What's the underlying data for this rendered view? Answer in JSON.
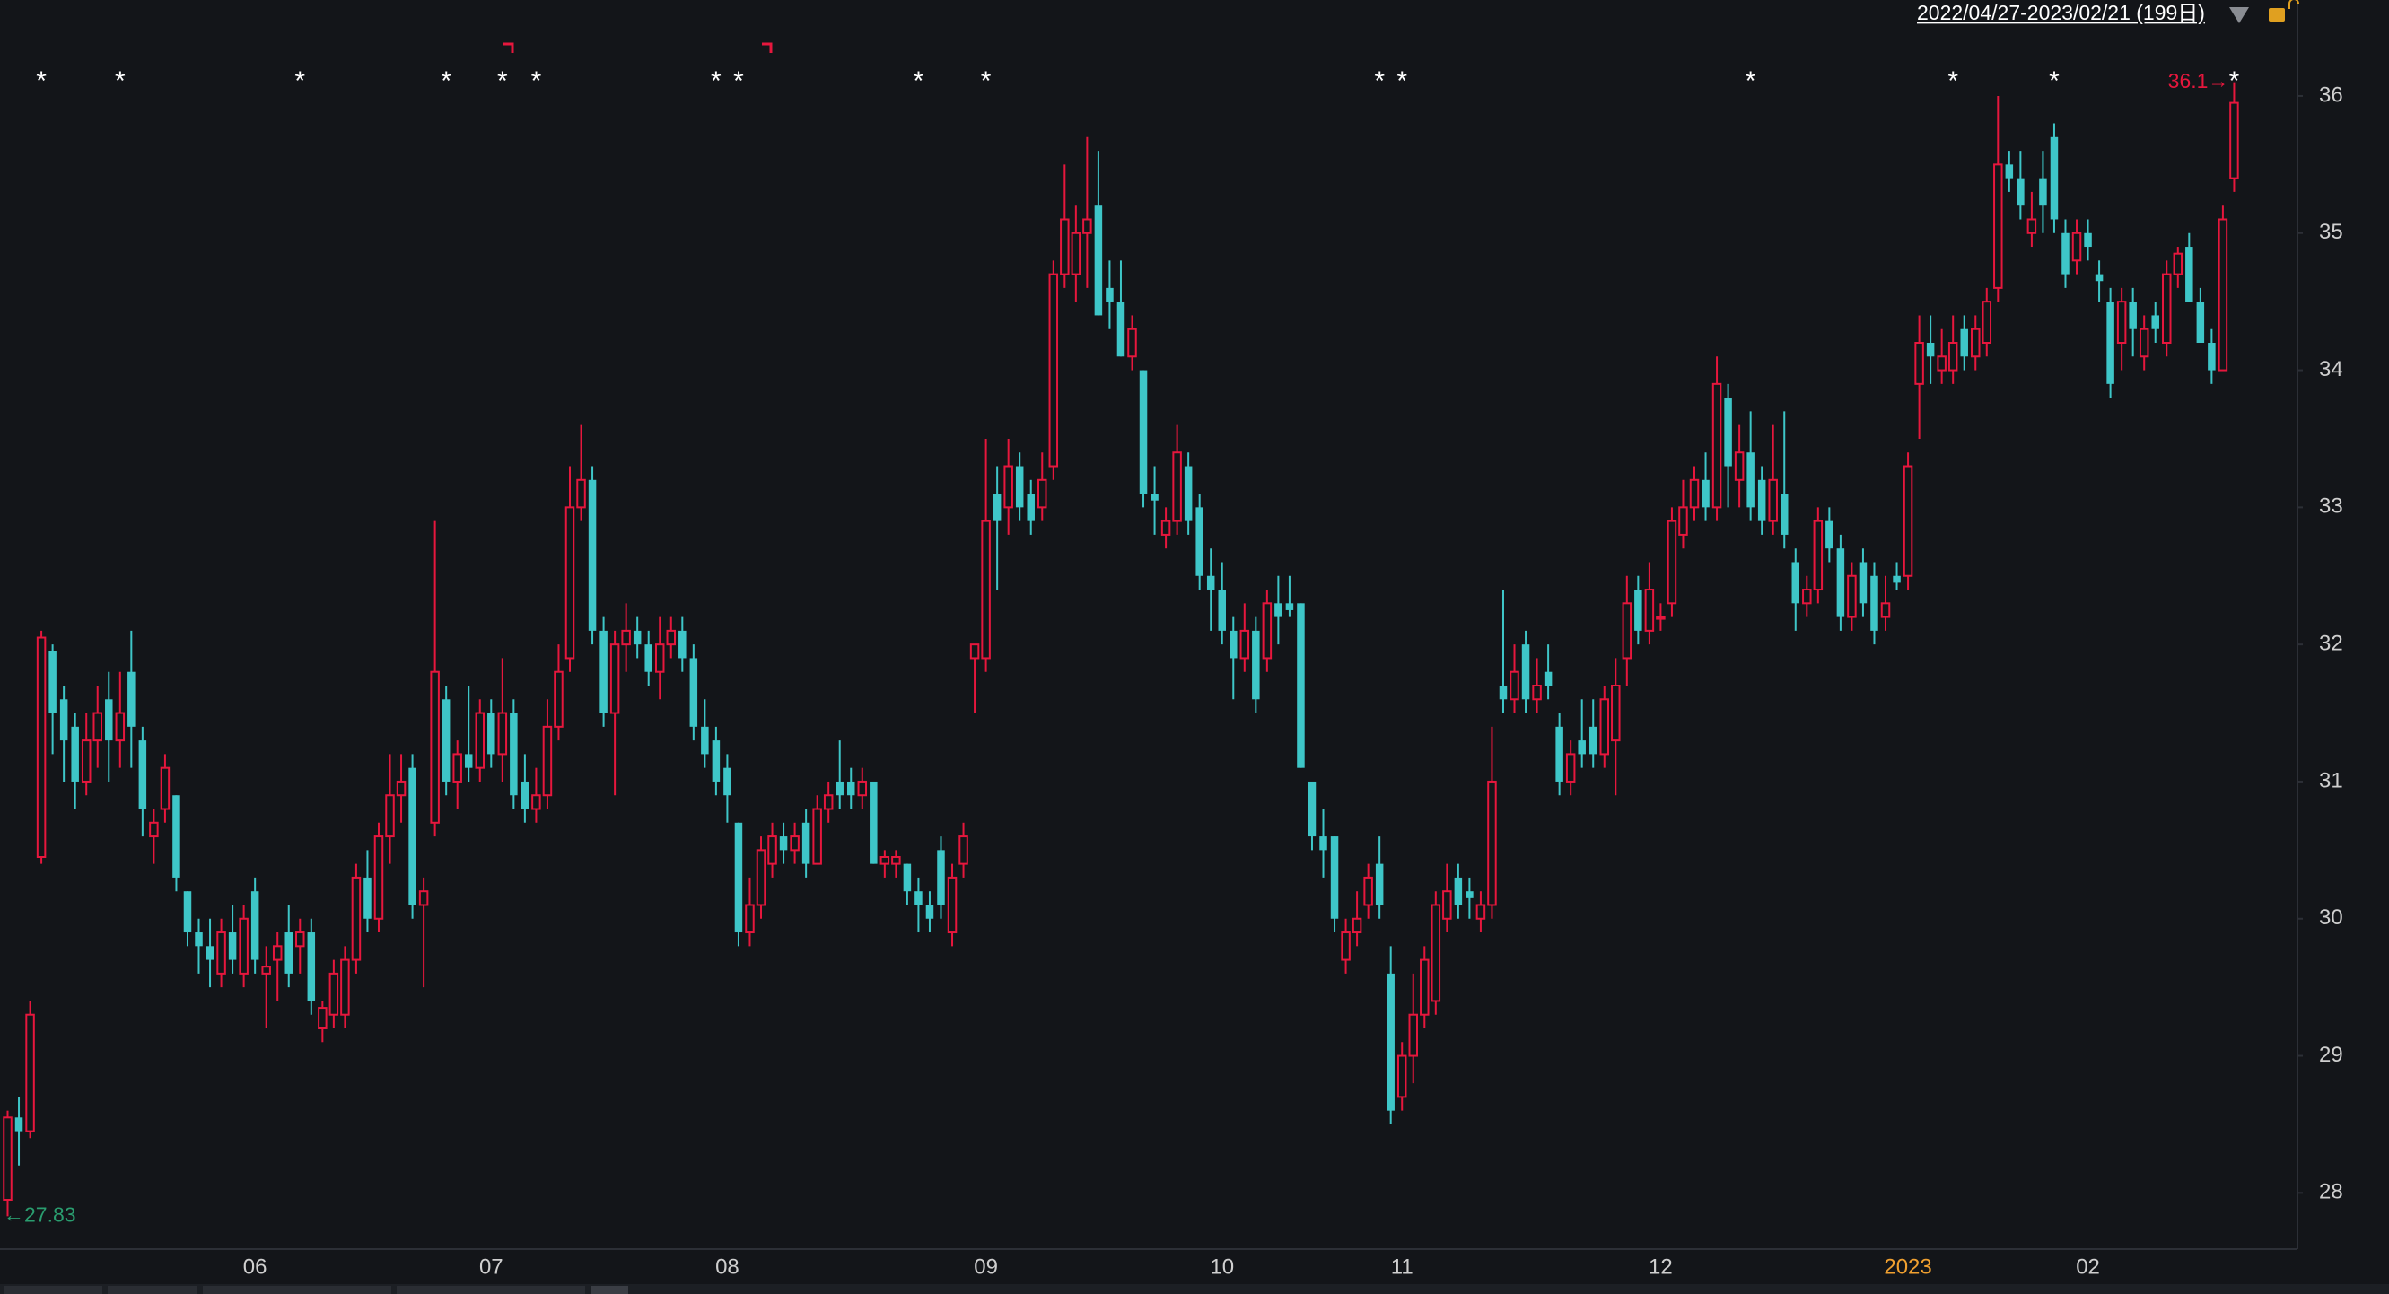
{
  "chart_data": {
    "type": "candlestick",
    "date_range": "2022/04/27-2023/02/21 (199日)",
    "up_color": "#e6173d",
    "down_color": "#3ec6c8",
    "year_label_color": "#f0a030",
    "ylim": [
      27.59,
      36.7
    ],
    "yticks": [
      28,
      29,
      30,
      31,
      32,
      33,
      34,
      35,
      36
    ],
    "categories": [
      null,
      null,
      null,
      null,
      null,
      null,
      null,
      null,
      null,
      null,
      null,
      null,
      null,
      null,
      null,
      null,
      null,
      null,
      null,
      null,
      null,
      null,
      "06",
      null,
      null,
      null,
      null,
      null,
      null,
      null,
      null,
      null,
      null,
      null,
      null,
      null,
      null,
      null,
      null,
      null,
      null,
      null,
      null,
      "07",
      null,
      null,
      null,
      null,
      null,
      null,
      null,
      null,
      null,
      null,
      null,
      null,
      null,
      null,
      null,
      null,
      null,
      null,
      null,
      null,
      "08",
      null,
      null,
      null,
      null,
      null,
      null,
      null,
      null,
      null,
      null,
      null,
      null,
      null,
      null,
      null,
      null,
      null,
      null,
      null,
      null,
      null,
      null,
      "09",
      null,
      null,
      null,
      null,
      null,
      null,
      null,
      null,
      null,
      null,
      null,
      null,
      null,
      null,
      null,
      null,
      null,
      null,
      null,
      null,
      "10",
      null,
      null,
      null,
      null,
      null,
      null,
      null,
      null,
      null,
      null,
      null,
      null,
      null,
      null,
      null,
      "11",
      null,
      null,
      null,
      null,
      null,
      null,
      null,
      null,
      null,
      null,
      null,
      null,
      null,
      null,
      null,
      null,
      null,
      null,
      null,
      null,
      null,
      null,
      "12",
      null,
      null,
      null,
      null,
      null,
      null,
      null,
      null,
      null,
      null,
      null,
      null,
      null,
      null,
      null,
      null,
      null,
      null,
      null,
      null,
      null,
      "2023",
      null,
      null,
      null,
      null,
      null,
      null,
      null,
      null,
      null,
      null,
      null,
      null,
      null,
      null,
      null,
      "02",
      null,
      null,
      null,
      null,
      null,
      null,
      null,
      null,
      null,
      null,
      null,
      null,
      null
    ],
    "markers": [
      null,
      null,
      null,
      "*",
      null,
      null,
      null,
      null,
      null,
      null,
      "*",
      null,
      null,
      null,
      null,
      null,
      null,
      null,
      null,
      null,
      null,
      null,
      null,
      null,
      null,
      null,
      "*",
      null,
      null,
      null,
      null,
      null,
      null,
      null,
      null,
      null,
      null,
      null,
      null,
      "*",
      null,
      null,
      null,
      null,
      "*",
      null,
      null,
      "*",
      null,
      null,
      null,
      null,
      null,
      null,
      null,
      null,
      null,
      null,
      null,
      null,
      null,
      null,
      null,
      "*",
      null,
      "*",
      null,
      null,
      null,
      null,
      null,
      null,
      null,
      null,
      null,
      null,
      null,
      null,
      null,
      null,
      null,
      "*",
      null,
      null,
      null,
      null,
      null,
      "*",
      null,
      null,
      null,
      null,
      null,
      null,
      null,
      null,
      null,
      null,
      null,
      null,
      null,
      null,
      null,
      null,
      null,
      null,
      null,
      null,
      null,
      null,
      null,
      null,
      null,
      null,
      null,
      null,
      null,
      null,
      null,
      null,
      null,
      null,
      "*",
      null,
      "*",
      null,
      null,
      null,
      null,
      null,
      null,
      null,
      null,
      null,
      null,
      null,
      null,
      null,
      null,
      null,
      null,
      null,
      null,
      null,
      null,
      null,
      null,
      null,
      null,
      null,
      null,
      null,
      null,
      null,
      null,
      "*",
      null,
      null,
      null,
      null,
      null,
      null,
      null,
      null,
      null,
      null,
      null,
      null,
      null,
      null,
      null,
      null,
      null,
      "*",
      null,
      null,
      null,
      null,
      null,
      null,
      null,
      null,
      "*",
      null,
      null,
      null,
      null,
      null,
      null,
      null,
      null,
      null,
      null,
      null,
      null,
      null,
      null,
      null,
      "*"
    ],
    "candles": [
      [
        27.95,
        28.6,
        27.83,
        28.55
      ],
      [
        28.55,
        28.7,
        28.2,
        28.45
      ],
      [
        28.45,
        29.4,
        28.4,
        29.3
      ],
      [
        30.45,
        32.1,
        30.4,
        32.05
      ],
      [
        31.95,
        32.0,
        31.2,
        31.5
      ],
      [
        31.6,
        31.7,
        31.0,
        31.3
      ],
      [
        31.4,
        31.5,
        30.8,
        31.0
      ],
      [
        31.0,
        31.5,
        30.9,
        31.3
      ],
      [
        31.3,
        31.7,
        31.1,
        31.5
      ],
      [
        31.6,
        31.8,
        31.0,
        31.3
      ],
      [
        31.3,
        31.8,
        31.1,
        31.5
      ],
      [
        31.8,
        32.1,
        31.1,
        31.4
      ],
      [
        31.3,
        31.4,
        30.6,
        30.8
      ],
      [
        30.6,
        30.8,
        30.4,
        30.7
      ],
      [
        30.8,
        31.2,
        30.7,
        31.1
      ],
      [
        30.9,
        30.9,
        30.2,
        30.3
      ],
      [
        30.2,
        30.2,
        29.8,
        29.9
      ],
      [
        29.9,
        30.0,
        29.6,
        29.8
      ],
      [
        29.8,
        30.0,
        29.5,
        29.7
      ],
      [
        29.6,
        30.0,
        29.5,
        29.9
      ],
      [
        29.9,
        30.1,
        29.6,
        29.7
      ],
      [
        29.6,
        30.1,
        29.5,
        30.0
      ],
      [
        30.2,
        30.3,
        29.6,
        29.7
      ],
      [
        29.6,
        29.8,
        29.2,
        29.65
      ],
      [
        29.7,
        29.9,
        29.4,
        29.8
      ],
      [
        29.9,
        30.1,
        29.5,
        29.6
      ],
      [
        29.8,
        30.0,
        29.6,
        29.9
      ],
      [
        29.9,
        30.0,
        29.3,
        29.4
      ],
      [
        29.2,
        29.4,
        29.1,
        29.35
      ],
      [
        29.3,
        29.7,
        29.2,
        29.6
      ],
      [
        29.3,
        29.8,
        29.2,
        29.7
      ],
      [
        29.7,
        30.4,
        29.6,
        30.3
      ],
      [
        30.3,
        30.5,
        29.9,
        30.0
      ],
      [
        30.0,
        30.7,
        29.9,
        30.6
      ],
      [
        30.6,
        31.2,
        30.4,
        30.9
      ],
      [
        30.9,
        31.2,
        30.7,
        31.0
      ],
      [
        31.1,
        31.2,
        30.0,
        30.1
      ],
      [
        30.1,
        30.3,
        29.5,
        30.2
      ],
      [
        30.7,
        32.9,
        30.6,
        31.8
      ],
      [
        31.6,
        31.7,
        30.9,
        31.0
      ],
      [
        31.0,
        31.3,
        30.8,
        31.2
      ],
      [
        31.2,
        31.7,
        31.0,
        31.1
      ],
      [
        31.1,
        31.6,
        31.0,
        31.5
      ],
      [
        31.5,
        31.6,
        31.1,
        31.2
      ],
      [
        31.2,
        31.9,
        31.0,
        31.5
      ],
      [
        31.5,
        31.6,
        30.8,
        30.9
      ],
      [
        31.0,
        31.2,
        30.7,
        30.8
      ],
      [
        30.8,
        31.1,
        30.7,
        30.9
      ],
      [
        30.9,
        31.6,
        30.8,
        31.4
      ],
      [
        31.4,
        32.0,
        31.3,
        31.8
      ],
      [
        31.9,
        33.3,
        31.8,
        33.0
      ],
      [
        33.0,
        33.6,
        32.9,
        33.2
      ],
      [
        33.2,
        33.3,
        32.0,
        32.1
      ],
      [
        32.1,
        32.2,
        31.4,
        31.5
      ],
      [
        31.5,
        32.1,
        30.9,
        32.0
      ],
      [
        32.0,
        32.3,
        31.8,
        32.1
      ],
      [
        32.1,
        32.2,
        31.9,
        32.0
      ],
      [
        32.0,
        32.1,
        31.7,
        31.8
      ],
      [
        31.8,
        32.2,
        31.6,
        32.0
      ],
      [
        32.0,
        32.2,
        31.9,
        32.1
      ],
      [
        32.1,
        32.2,
        31.8,
        31.9
      ],
      [
        31.9,
        32.0,
        31.3,
        31.4
      ],
      [
        31.4,
        31.6,
        31.1,
        31.2
      ],
      [
        31.3,
        31.4,
        30.9,
        31.0
      ],
      [
        31.1,
        31.2,
        30.7,
        30.9
      ],
      [
        30.7,
        30.7,
        29.8,
        29.9
      ],
      [
        29.9,
        30.3,
        29.8,
        30.1
      ],
      [
        30.1,
        30.6,
        30.0,
        30.5
      ],
      [
        30.4,
        30.7,
        30.3,
        30.6
      ],
      [
        30.6,
        30.7,
        30.4,
        30.5
      ],
      [
        30.5,
        30.7,
        30.4,
        30.6
      ],
      [
        30.7,
        30.8,
        30.3,
        30.4
      ],
      [
        30.4,
        30.9,
        30.4,
        30.8
      ],
      [
        30.8,
        31.0,
        30.7,
        30.9
      ],
      [
        31.0,
        31.3,
        30.8,
        30.9
      ],
      [
        31.0,
        31.1,
        30.8,
        30.9
      ],
      [
        30.9,
        31.1,
        30.8,
        31.0
      ],
      [
        31.0,
        31.0,
        30.4,
        30.4
      ],
      [
        30.4,
        30.5,
        30.3,
        30.45
      ],
      [
        30.4,
        30.5,
        30.3,
        30.45
      ],
      [
        30.4,
        30.4,
        30.1,
        30.2
      ],
      [
        30.2,
        30.3,
        29.9,
        30.1
      ],
      [
        30.1,
        30.2,
        29.9,
        30.0
      ],
      [
        30.5,
        30.6,
        30.0,
        30.1
      ],
      [
        29.9,
        30.4,
        29.8,
        30.3
      ],
      [
        30.4,
        30.7,
        30.3,
        30.6
      ],
      [
        31.9,
        32.0,
        31.5,
        32.0
      ],
      [
        31.9,
        33.5,
        31.8,
        32.9
      ],
      [
        33.1,
        33.3,
        32.4,
        32.9
      ],
      [
        33.0,
        33.5,
        32.8,
        33.3
      ],
      [
        33.3,
        33.4,
        32.9,
        33.0
      ],
      [
        33.1,
        33.2,
        32.8,
        32.9
      ],
      [
        33.0,
        33.4,
        32.9,
        33.2
      ],
      [
        33.3,
        34.8,
        33.2,
        34.7
      ],
      [
        34.7,
        35.5,
        34.6,
        35.1
      ],
      [
        34.7,
        35.2,
        34.5,
        35.0
      ],
      [
        35.0,
        35.7,
        34.6,
        35.1
      ],
      [
        35.2,
        35.6,
        34.4,
        34.4
      ],
      [
        34.6,
        34.8,
        34.3,
        34.5
      ],
      [
        34.5,
        34.8,
        34.1,
        34.1
      ],
      [
        34.1,
        34.4,
        34.0,
        34.3
      ],
      [
        34.0,
        34.0,
        33.0,
        33.1
      ],
      [
        33.1,
        33.3,
        32.8,
        33.05
      ],
      [
        32.8,
        33.0,
        32.7,
        32.9
      ],
      [
        32.9,
        33.6,
        32.8,
        33.4
      ],
      [
        33.3,
        33.4,
        32.8,
        32.9
      ],
      [
        33.0,
        33.1,
        32.4,
        32.5
      ],
      [
        32.5,
        32.7,
        32.1,
        32.4
      ],
      [
        32.4,
        32.6,
        32.0,
        32.1
      ],
      [
        32.1,
        32.2,
        31.6,
        31.9
      ],
      [
        31.9,
        32.3,
        31.8,
        32.1
      ],
      [
        32.1,
        32.2,
        31.5,
        31.6
      ],
      [
        31.9,
        32.4,
        31.8,
        32.3
      ],
      [
        32.3,
        32.5,
        32.0,
        32.2
      ],
      [
        32.3,
        32.5,
        32.2,
        32.25
      ],
      [
        32.3,
        32.3,
        31.1,
        31.1
      ],
      [
        31.0,
        31.0,
        30.5,
        30.6
      ],
      [
        30.6,
        30.8,
        30.3,
        30.5
      ],
      [
        30.6,
        30.6,
        29.9,
        30.0
      ],
      [
        29.7,
        30.0,
        29.6,
        29.9
      ],
      [
        29.9,
        30.2,
        29.8,
        30.0
      ],
      [
        30.1,
        30.4,
        30.0,
        30.3
      ],
      [
        30.4,
        30.6,
        30.0,
        30.1
      ],
      [
        29.6,
        29.8,
        28.5,
        28.6
      ],
      [
        28.7,
        29.1,
        28.6,
        29.0
      ],
      [
        29.0,
        29.6,
        28.8,
        29.3
      ],
      [
        29.3,
        29.8,
        29.2,
        29.7
      ],
      [
        29.4,
        30.2,
        29.3,
        30.1
      ],
      [
        30.0,
        30.4,
        29.9,
        30.2
      ],
      [
        30.3,
        30.4,
        30.0,
        30.1
      ],
      [
        30.2,
        30.3,
        30.0,
        30.15
      ],
      [
        30.0,
        30.2,
        29.9,
        30.1
      ],
      [
        30.1,
        31.4,
        30.0,
        31.0
      ],
      [
        31.7,
        32.4,
        31.5,
        31.6
      ],
      [
        31.6,
        32.0,
        31.5,
        31.8
      ],
      [
        32.0,
        32.1,
        31.5,
        31.6
      ],
      [
        31.6,
        31.9,
        31.5,
        31.7
      ],
      [
        31.8,
        32.0,
        31.6,
        31.7
      ],
      [
        31.4,
        31.5,
        30.9,
        31.0
      ],
      [
        31.0,
        31.3,
        30.9,
        31.2
      ],
      [
        31.3,
        31.6,
        31.1,
        31.2
      ],
      [
        31.4,
        31.6,
        31.1,
        31.2
      ],
      [
        31.2,
        31.7,
        31.1,
        31.6
      ],
      [
        31.3,
        31.9,
        30.9,
        31.7
      ],
      [
        31.9,
        32.5,
        31.7,
        32.3
      ],
      [
        32.4,
        32.5,
        32.0,
        32.1
      ],
      [
        32.1,
        32.6,
        32.0,
        32.4
      ],
      [
        32.2,
        32.3,
        32.1,
        32.2
      ],
      [
        32.3,
        33.0,
        32.2,
        32.9
      ],
      [
        32.8,
        33.2,
        32.7,
        33.0
      ],
      [
        33.0,
        33.3,
        32.9,
        33.2
      ],
      [
        33.2,
        33.4,
        32.9,
        33.0
      ],
      [
        33.0,
        34.1,
        32.9,
        33.9
      ],
      [
        33.8,
        33.9,
        33.0,
        33.3
      ],
      [
        33.2,
        33.6,
        33.0,
        33.4
      ],
      [
        33.4,
        33.7,
        32.9,
        33.0
      ],
      [
        33.2,
        33.3,
        32.8,
        32.9
      ],
      [
        32.9,
        33.6,
        32.8,
        33.2
      ],
      [
        33.1,
        33.7,
        32.7,
        32.8
      ],
      [
        32.6,
        32.7,
        32.1,
        32.3
      ],
      [
        32.3,
        32.5,
        32.2,
        32.4
      ],
      [
        32.4,
        33.0,
        32.3,
        32.9
      ],
      [
        32.9,
        33.0,
        32.6,
        32.7
      ],
      [
        32.7,
        32.8,
        32.1,
        32.2
      ],
      [
        32.2,
        32.6,
        32.1,
        32.5
      ],
      [
        32.6,
        32.7,
        32.2,
        32.3
      ],
      [
        32.5,
        32.6,
        32.0,
        32.1
      ],
      [
        32.2,
        32.5,
        32.1,
        32.3
      ],
      [
        32.5,
        32.6,
        32.4,
        32.45
      ],
      [
        32.5,
        33.4,
        32.4,
        33.3
      ],
      [
        33.9,
        34.4,
        33.5,
        34.2
      ],
      [
        34.2,
        34.4,
        33.9,
        34.1
      ],
      [
        34.0,
        34.3,
        33.9,
        34.1
      ],
      [
        34.0,
        34.4,
        33.9,
        34.2
      ],
      [
        34.3,
        34.4,
        34.0,
        34.1
      ],
      [
        34.1,
        34.4,
        34.0,
        34.3
      ],
      [
        34.2,
        34.6,
        34.1,
        34.5
      ],
      [
        34.6,
        36.0,
        34.5,
        35.5
      ],
      [
        35.5,
        35.6,
        35.3,
        35.4
      ],
      [
        35.4,
        35.6,
        35.1,
        35.2
      ],
      [
        35.0,
        35.3,
        34.9,
        35.1
      ],
      [
        35.4,
        35.6,
        35.0,
        35.2
      ],
      [
        35.7,
        35.8,
        35.0,
        35.1
      ],
      [
        35.0,
        35.1,
        34.6,
        34.7
      ],
      [
        34.8,
        35.1,
        34.7,
        35.0
      ],
      [
        35.0,
        35.1,
        34.8,
        34.9
      ],
      [
        34.7,
        34.8,
        34.5,
        34.65
      ],
      [
        34.5,
        34.6,
        33.8,
        33.9
      ],
      [
        34.2,
        34.6,
        34.0,
        34.5
      ],
      [
        34.5,
        34.6,
        34.1,
        34.3
      ],
      [
        34.1,
        34.4,
        34.0,
        34.3
      ],
      [
        34.4,
        34.5,
        34.2,
        34.3
      ],
      [
        34.2,
        34.8,
        34.1,
        34.7
      ],
      [
        34.7,
        34.9,
        34.6,
        34.85
      ],
      [
        34.9,
        35.0,
        34.5,
        34.5
      ],
      [
        34.5,
        34.6,
        34.2,
        34.2
      ],
      [
        34.2,
        34.3,
        33.9,
        34.0
      ],
      [
        34.0,
        35.2,
        34.0,
        35.1
      ],
      [
        35.4,
        36.1,
        35.3,
        35.95
      ]
    ],
    "annotations": [
      {
        "label": "←27.83",
        "value": 27.83,
        "color": "#2a9d6f"
      },
      {
        "label": "36.1→",
        "value": 36.1,
        "color": "#e6173d"
      }
    ]
  }
}
